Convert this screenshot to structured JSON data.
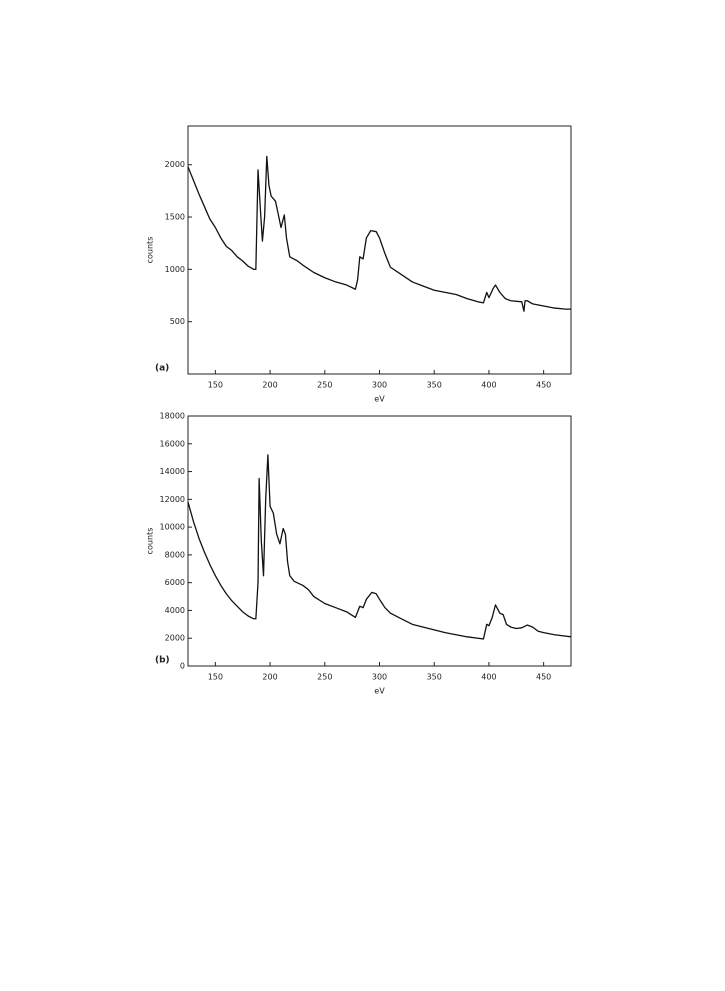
{
  "chart_data": [
    {
      "type": "line",
      "annotation": "(a)",
      "x_label": "eV",
      "y_label": "counts",
      "xlim": [
        125,
        475
      ],
      "ylim": [
        0,
        2370
      ],
      "xticks": [
        150,
        200,
        250,
        300,
        350,
        400,
        450
      ],
      "yticks": [
        500,
        1000,
        1500,
        2000
      ],
      "color": "#111111",
      "x": [
        125,
        130,
        135,
        140,
        145,
        150,
        155,
        160,
        165,
        170,
        175,
        180,
        185,
        187,
        189,
        191,
        193,
        195,
        197,
        199,
        201,
        205,
        208,
        210,
        213,
        215,
        218,
        225,
        230,
        240,
        250,
        260,
        270,
        278,
        280,
        282,
        285,
        288,
        292,
        297,
        300,
        305,
        310,
        320,
        330,
        340,
        350,
        360,
        370,
        380,
        390,
        395,
        398,
        400,
        404,
        406,
        410,
        415,
        420,
        430,
        432,
        433,
        435,
        440,
        450,
        460,
        470,
        475
      ],
      "values": [
        1980,
        1850,
        1720,
        1600,
        1480,
        1400,
        1300,
        1220,
        1180,
        1120,
        1080,
        1030,
        1000,
        1000,
        1950,
        1600,
        1270,
        1500,
        2080,
        1800,
        1700,
        1650,
        1500,
        1400,
        1520,
        1300,
        1120,
        1080,
        1040,
        970,
        920,
        880,
        850,
        810,
        900,
        1120,
        1100,
        1300,
        1370,
        1360,
        1300,
        1150,
        1020,
        950,
        880,
        840,
        800,
        780,
        760,
        720,
        690,
        680,
        780,
        730,
        820,
        850,
        780,
        720,
        700,
        690,
        600,
        700,
        700,
        670,
        650,
        630,
        620,
        620
      ]
    },
    {
      "type": "line",
      "annotation": "(b)",
      "x_label": "eV",
      "y_label": "counts",
      "xlim": [
        125,
        475
      ],
      "ylim": [
        0,
        18000
      ],
      "xticks": [
        150,
        200,
        250,
        300,
        350,
        400,
        450
      ],
      "yticks": [
        0,
        2000,
        4000,
        6000,
        8000,
        10000,
        12000,
        14000,
        16000,
        18000
      ],
      "color": "#111111",
      "x": [
        125,
        130,
        135,
        140,
        145,
        150,
        155,
        160,
        165,
        170,
        175,
        180,
        185,
        187,
        189,
        190,
        192,
        194,
        196,
        198,
        200,
        203,
        206,
        209,
        212,
        214,
        216,
        218,
        222,
        230,
        235,
        240,
        250,
        260,
        270,
        278,
        282,
        285,
        288,
        293,
        297,
        300,
        305,
        310,
        320,
        330,
        340,
        350,
        360,
        370,
        380,
        390,
        395,
        398,
        400,
        403,
        406,
        410,
        413,
        416,
        420,
        425,
        430,
        435,
        440,
        445,
        450,
        460,
        470,
        475
      ],
      "values": [
        11800,
        10400,
        9200,
        8200,
        7300,
        6500,
        5800,
        5200,
        4700,
        4300,
        3900,
        3600,
        3400,
        3400,
        6000,
        13500,
        9000,
        6500,
        12000,
        15200,
        11500,
        11000,
        9500,
        8800,
        9900,
        9500,
        7500,
        6500,
        6100,
        5800,
        5500,
        5000,
        4500,
        4200,
        3900,
        3500,
        4300,
        4200,
        4800,
        5300,
        5200,
        4800,
        4200,
        3800,
        3400,
        3000,
        2800,
        2600,
        2400,
        2250,
        2100,
        2000,
        1950,
        3000,
        2900,
        3500,
        4400,
        3800,
        3700,
        3000,
        2800,
        2700,
        2750,
        2950,
        2800,
        2500,
        2400,
        2250,
        2150,
        2100
      ]
    }
  ]
}
